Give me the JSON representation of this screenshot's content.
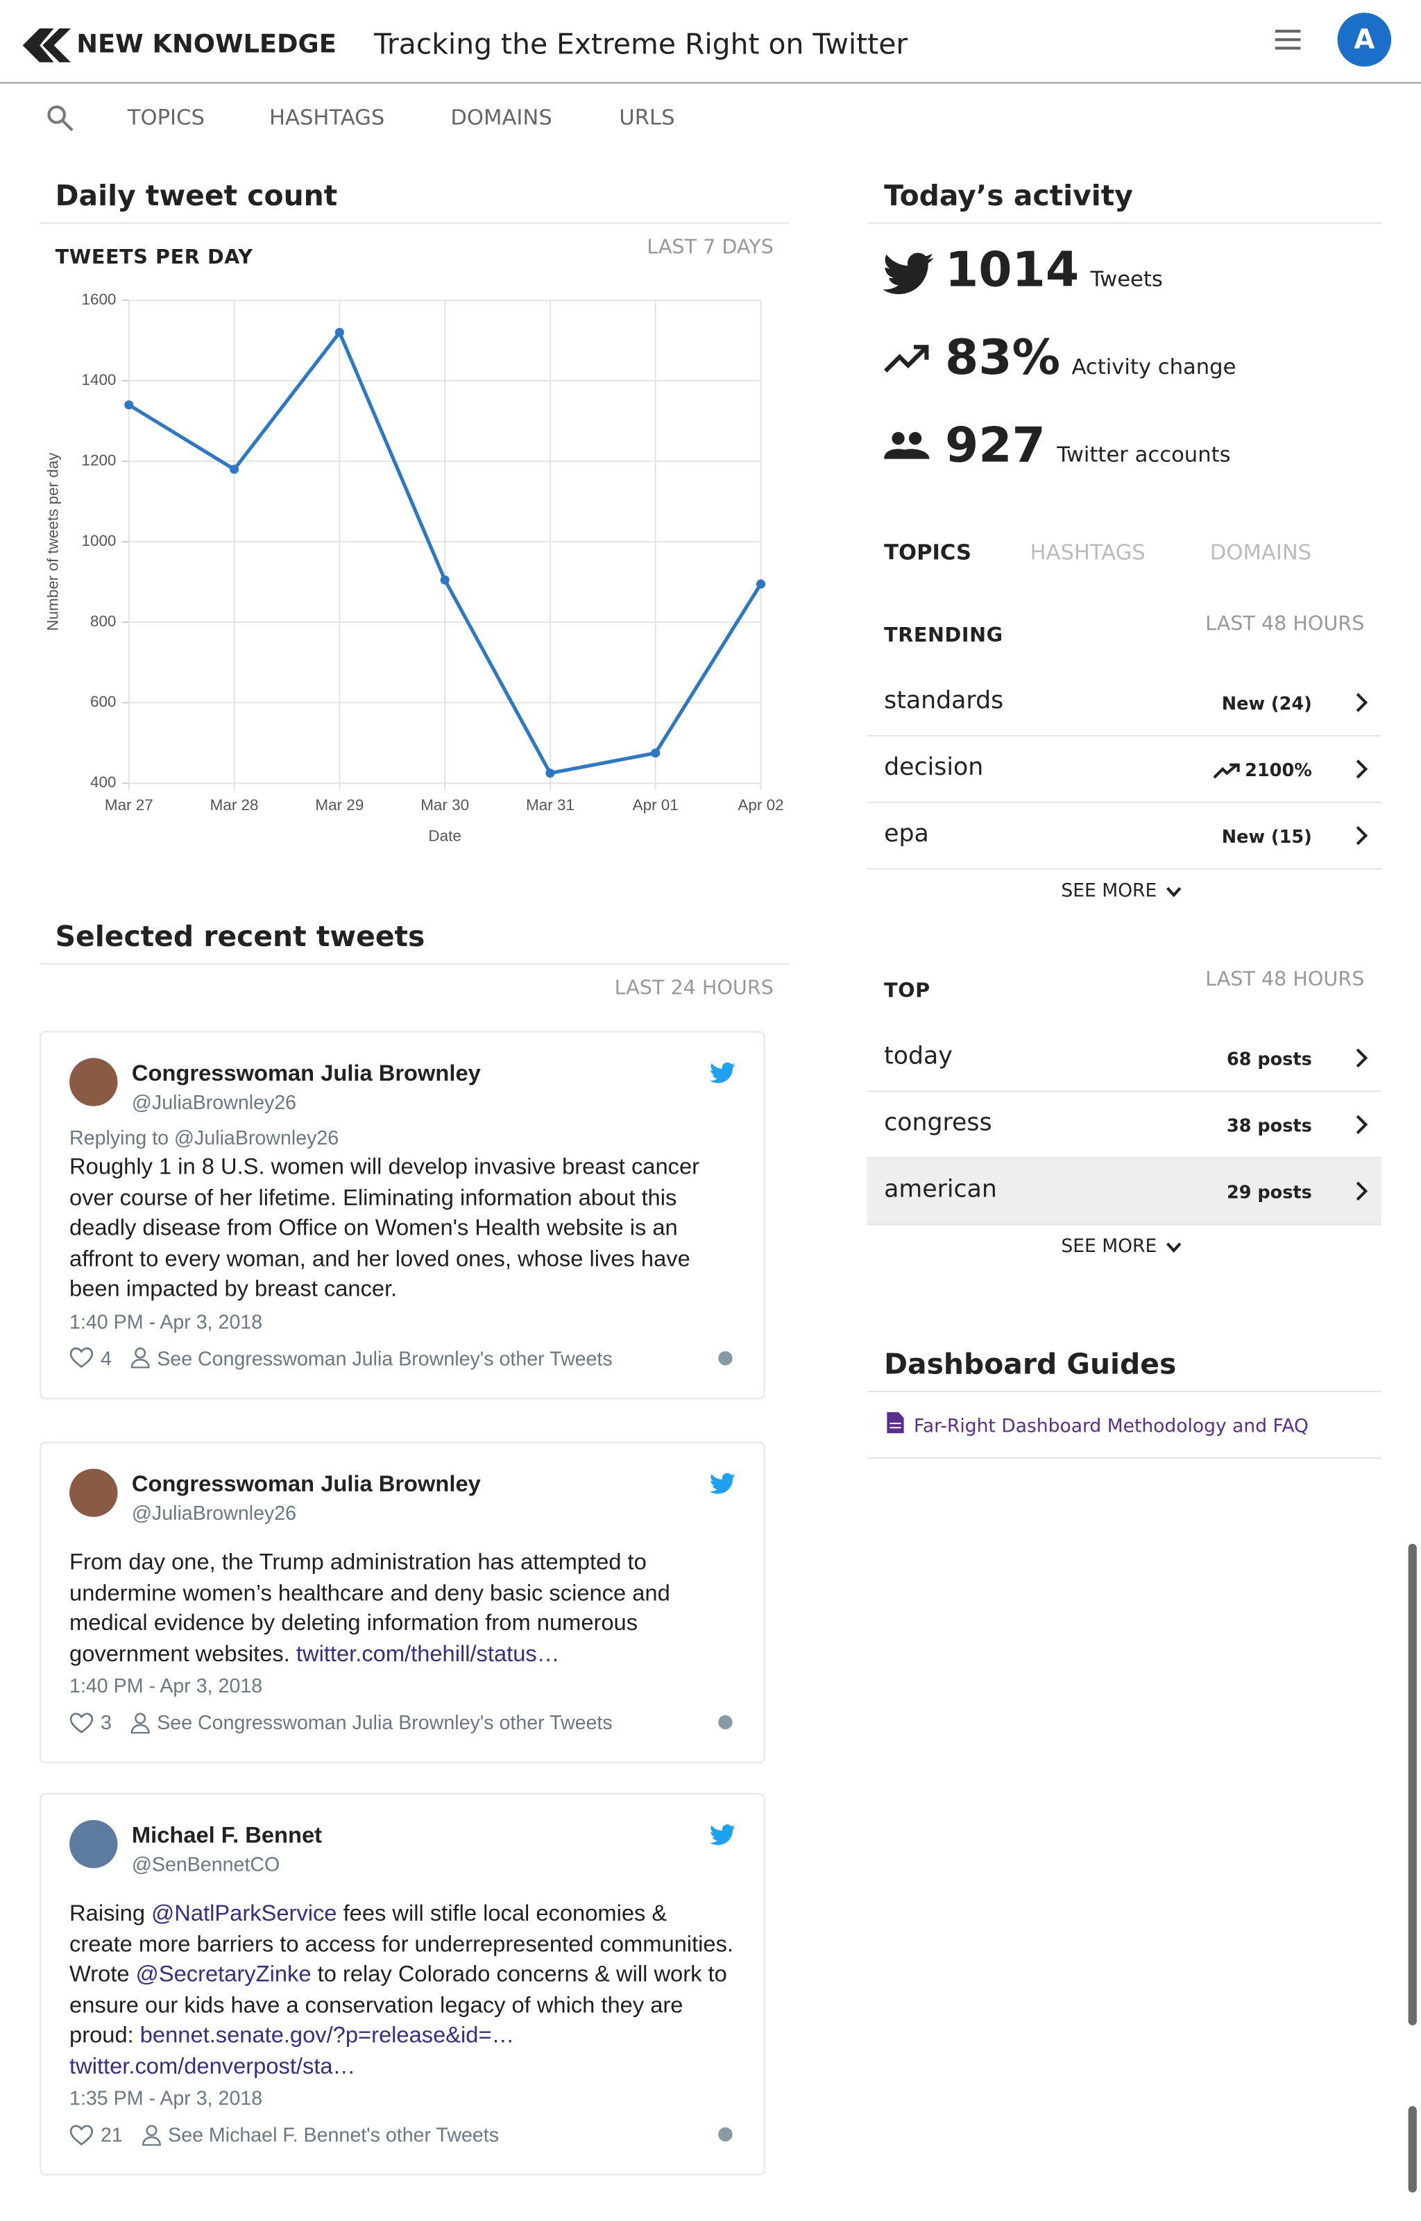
{
  "header": {
    "brand": "NEW KNOWLEDGE",
    "title": "Tracking the Extreme Right on Twitter",
    "avatar": "A"
  },
  "nav": [
    "TOPICS",
    "HASHTAGS",
    "DOMAINS",
    "URLS"
  ],
  "daily": {
    "heading": "Daily tweet count"
  },
  "chart_data": {
    "type": "line",
    "title": "TWEETS PER DAY",
    "subtitle": "LAST 7 DAYS",
    "x_label": "Date",
    "y_label": "Number of tweets per day",
    "categories": [
      "Mar 27",
      "Mar 28",
      "Mar 29",
      "Mar 30",
      "Mar 31",
      "Apr 01",
      "Apr 02"
    ],
    "values": [
      1340,
      1180,
      1520,
      905,
      425,
      475,
      895
    ],
    "color": "#2a78c8",
    "ylim": [
      400,
      1600
    ],
    "yticks": [
      400,
      600,
      800,
      1000,
      1200,
      1400,
      1600
    ],
    "grid": true
  },
  "tweets": {
    "heading": "Selected recent tweets",
    "period": "LAST 24 HOURS",
    "items": [
      {
        "name": "Congresswoman Julia Brownley",
        "handle": "@JuliaBrownley26",
        "reply": "Replying to @JuliaBrownley26",
        "body": [
          {
            "text": "Roughly 1 in 8 U.S. women will develop invasive breast cancer over course of her lifetime. Eliminating information about this deadly disease from Office on Women's Health website is an affront to every woman, and her loved ones, whose lives have been impacted by breast cancer.",
            "link": false
          }
        ],
        "time": "1:40 PM - Apr 3, 2018",
        "likes": 4,
        "other": "See Congresswoman Julia Brownley's other Tweets"
      },
      {
        "name": "Congresswoman Julia Brownley",
        "handle": "@JuliaBrownley26",
        "reply": null,
        "body": [
          {
            "text": "From day one, the Trump administration has attempted to undermine women’s healthcare and deny basic science and medical evidence by deleting information from numerous government websites. ",
            "link": false
          },
          {
            "text": "twitter.com/thehill/status…",
            "link": true
          }
        ],
        "time": "1:40 PM - Apr 3, 2018",
        "likes": 3,
        "other": "See Congresswoman Julia Brownley's other Tweets"
      },
      {
        "name": "Michael F. Bennet",
        "handle": "@SenBennetCO",
        "reply": null,
        "body": [
          {
            "text": "Raising ",
            "link": false
          },
          {
            "text": "@NatlParkService",
            "link": true
          },
          {
            "text": " fees will stifle local economies & create more barriers to access for underrepresented communities. Wrote ",
            "link": false
          },
          {
            "text": "@SecretaryZinke",
            "link": true
          },
          {
            "text": " to relay Colorado concerns & will work to ensure our kids have a conservation legacy of which they are proud: ",
            "link": false
          },
          {
            "text": "bennet.senate.gov/?p=release&id=…",
            "link": true
          },
          {
            "text": " ",
            "link": false
          },
          {
            "text": "twitter.com/denverpost/sta…",
            "link": true
          }
        ],
        "time": "1:35 PM - Apr 3, 2018",
        "likes": 21,
        "other": "See Michael F. Bennet's other Tweets"
      }
    ]
  },
  "activity": {
    "heading": "Today’s activity",
    "stats": [
      {
        "value": 1014,
        "label": "Tweets"
      },
      {
        "value": 83,
        "value_label": "83%",
        "label": "Activity change"
      },
      {
        "value": 927,
        "label": "Twitter accounts"
      }
    ]
  },
  "tabs": [
    "TOPICS",
    "HASHTAGS",
    "DOMAINS"
  ],
  "trending": {
    "heading": "TRENDING",
    "period": "LAST 48 HOURS",
    "rows": [
      {
        "term": "standards",
        "stat": "New (24)",
        "trend": false
      },
      {
        "term": "decision",
        "stat": "2100%",
        "trend": true
      },
      {
        "term": "epa",
        "stat": "New (15)",
        "trend": false
      }
    ],
    "more": "SEE MORE"
  },
  "top": {
    "heading": "TOP",
    "period": "LAST 48 HOURS",
    "rows": [
      {
        "term": "today",
        "stat": "68 posts"
      },
      {
        "term": "congress",
        "stat": "38 posts"
      },
      {
        "term": "american",
        "stat": "29 posts"
      }
    ],
    "more": "SEE MORE"
  },
  "guides": {
    "heading": "Dashboard Guides",
    "link": "Far-Right Dashboard Methodology and FAQ"
  }
}
